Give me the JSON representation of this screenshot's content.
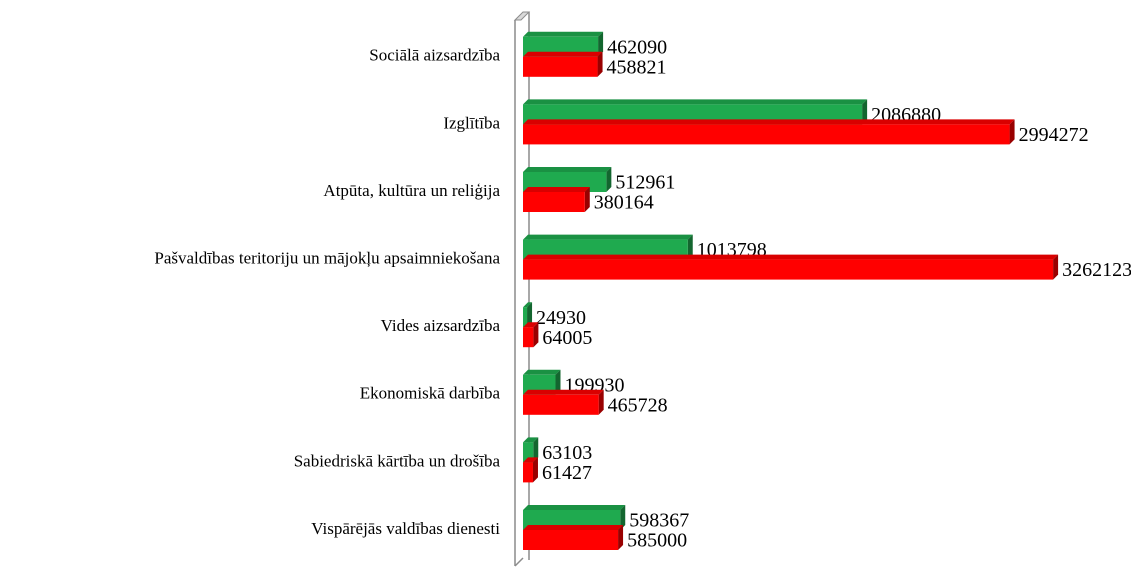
{
  "chart_data": {
    "type": "bar",
    "orientation": "horizontal",
    "categories": [
      "Sociālā aizsardzība",
      "Izglītība",
      "Atpūta, kultūra un reliģija",
      "Pašvaldības teritoriju un mājokļu apsaimniekošana",
      "Vides aizsardzība",
      "Ekonomiskā darbība",
      "Sabiedriskā kārtība un drošība",
      "Vispārējās valdības dienesti"
    ],
    "series": [
      {
        "color": "#1faa4f",
        "values": [
          462090,
          2086880,
          512961,
          1013798,
          24930,
          199930,
          63103,
          598367
        ]
      },
      {
        "color": "#ff0000",
        "values": [
          458821,
          2994272,
          380164,
          3262123,
          64005,
          465728,
          61427,
          585000
        ]
      }
    ],
    "xlim": [
      0,
      3500000
    ]
  }
}
